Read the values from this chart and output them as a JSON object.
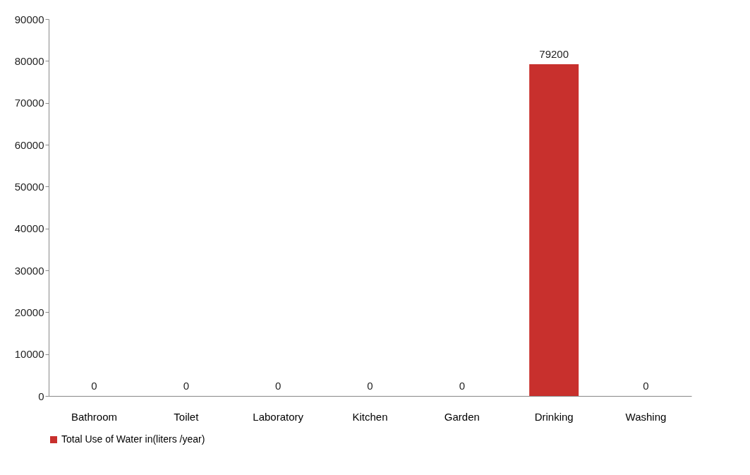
{
  "chart_data": {
    "type": "bar",
    "categories": [
      "Bathroom",
      "Toilet",
      "Laboratory",
      "Kitchen",
      "Garden",
      "Drinking",
      "Washing"
    ],
    "series": [
      {
        "name": "Total Use of Water in(liters /year)",
        "color": "#c8302d",
        "values": [
          0,
          0,
          0,
          0,
          0,
          79200,
          0
        ]
      }
    ],
    "ylim": [
      0,
      90000
    ],
    "yticks": [
      0,
      10000,
      20000,
      30000,
      40000,
      50000,
      60000,
      70000,
      80000,
      90000
    ],
    "data_labels": true,
    "grid": false,
    "legend": "bottom"
  }
}
